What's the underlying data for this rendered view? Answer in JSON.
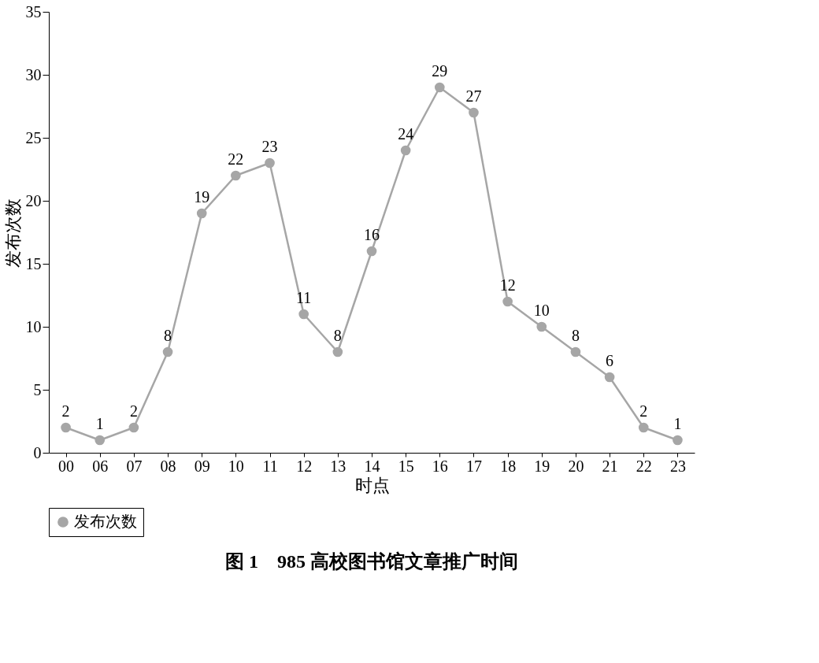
{
  "chart_data": {
    "type": "line",
    "title": "图 1　985 高校图书馆文章推广时间",
    "xlabel": "时点",
    "ylabel": "发布次数",
    "categories": [
      "00",
      "06",
      "07",
      "08",
      "09",
      "10",
      "11",
      "12",
      "13",
      "14",
      "15",
      "16",
      "17",
      "18",
      "19",
      "20",
      "21",
      "22",
      "23"
    ],
    "series": [
      {
        "name": "发布次数",
        "color": "#a6a6a6",
        "values": [
          2,
          1,
          2,
          8,
          19,
          22,
          23,
          11,
          8,
          16,
          24,
          29,
          27,
          12,
          10,
          8,
          6,
          2,
          1
        ]
      }
    ],
    "ylim": [
      0,
      35
    ],
    "yticks": [
      0,
      5,
      10,
      15,
      20,
      25,
      30,
      35
    ],
    "grid": false,
    "legend": "bottom",
    "marker": "circle",
    "line_style": "solid",
    "data_labels": true
  }
}
